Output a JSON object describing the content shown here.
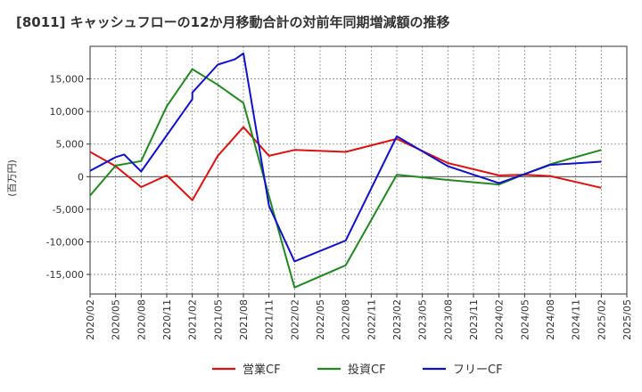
{
  "chart_data": {
    "type": "line",
    "title": "[8011]  キャッシュフローの12か月移動合計の対前年同期増減額の推移",
    "ylabel": "(百万円)",
    "xlabel": "",
    "ylim": [
      -18000,
      20000
    ],
    "y_ticks": [
      15000,
      10000,
      5000,
      0,
      -5000,
      -10000,
      -15000
    ],
    "y_tick_labels": [
      "15,000",
      "10,000",
      "5,000",
      "0",
      "-5,000",
      "-10,000",
      "-15,000"
    ],
    "x_ticks": [
      "2020/02",
      "2020/05",
      "2020/08",
      "2020/11",
      "2021/02",
      "2021/05",
      "2021/08",
      "2021/11",
      "2022/02",
      "2022/05",
      "2022/08",
      "2022/11",
      "2023/02",
      "2023/05",
      "2023/08",
      "2023/11",
      "2024/02",
      "2024/05",
      "2024/08",
      "2024/11",
      "2025/02",
      "2025/05"
    ],
    "grid": true,
    "legend_position": "bottom",
    "series": [
      {
        "name": "営業CF",
        "color": "#dd1111",
        "x": [
          "2020/02",
          "2020/05",
          "2020/08",
          "2020/11",
          "2021/02",
          "2021/05",
          "2021/08",
          "2021/11",
          "2022/02",
          "2022/08",
          "2023/02",
          "2023/08",
          "2024/02",
          "2024/05",
          "2024/08",
          "2025/02"
        ],
        "y": [
          3800,
          1600,
          -1600,
          200,
          -3600,
          3200,
          7600,
          3200,
          4100,
          3800,
          5800,
          2100,
          200,
          300,
          100,
          -1700
        ]
      },
      {
        "name": "投資CF",
        "color": "#228822",
        "x": [
          "2020/02",
          "2020/05",
          "2020/08",
          "2020/11",
          "2021/02",
          "2021/05",
          "2021/08",
          "2021/11",
          "2022/02",
          "2022/08",
          "2023/02",
          "2023/08",
          "2024/02",
          "2024/05",
          "2024/08",
          "2025/02"
        ],
        "y": [
          -2900,
          1700,
          2400,
          10800,
          16500,
          14100,
          11300,
          -3000,
          -17000,
          -13600,
          300,
          -500,
          -1200,
          400,
          1900,
          4100
        ]
      },
      {
        "name": "フリーCF",
        "color": "#1111cc",
        "x": [
          "2020/02",
          "2020/05",
          "2020/06",
          "2020/08",
          "2021/02",
          "2021/02",
          "2021/05",
          "2021/07",
          "2021/08",
          "2021/11",
          "2022/02",
          "2022/08",
          "2023/02",
          "2023/08",
          "2024/02",
          "2024/05",
          "2024/08",
          "2025/02"
        ],
        "y": [
          900,
          3000,
          3400,
          800,
          11900,
          12900,
          17200,
          18000,
          18900,
          -4500,
          -13000,
          -9800,
          6200,
          1600,
          -1000,
          400,
          1800,
          2300
        ]
      }
    ]
  }
}
